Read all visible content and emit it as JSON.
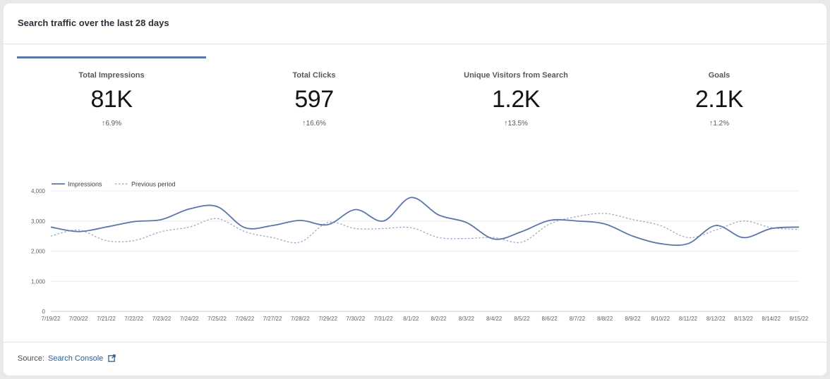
{
  "card": {
    "title": "Search traffic over the last 28 days"
  },
  "metrics": [
    {
      "label": "Total Impressions",
      "value": "81K",
      "delta": "6.9%"
    },
    {
      "label": "Total Clicks",
      "value": "597",
      "delta": "16.6%"
    },
    {
      "label": "Unique Visitors from Search",
      "value": "1.2K",
      "delta": "13.5%"
    },
    {
      "label": "Goals",
      "value": "2.1K",
      "delta": "1.2%"
    }
  ],
  "colors": {
    "accent": "#5a77a8",
    "previous": "#8fa3c6",
    "grid": "#ececef",
    "up": "#3d8a4a"
  },
  "footer": {
    "source_label": "Source:",
    "link_text": "Search Console",
    "link_icon": "external-link-icon"
  },
  "chart_data": {
    "type": "line",
    "categories": [
      "7/19/22",
      "7/20/22",
      "7/21/22",
      "7/22/22",
      "7/23/22",
      "7/24/22",
      "7/25/22",
      "7/26/22",
      "7/27/22",
      "7/28/22",
      "7/29/22",
      "7/30/22",
      "7/31/22",
      "8/1/22",
      "8/2/22",
      "8/3/22",
      "8/4/22",
      "8/5/22",
      "8/6/22",
      "8/7/22",
      "8/8/22",
      "8/9/22",
      "8/10/22",
      "8/11/22",
      "8/12/22",
      "8/13/22",
      "8/14/22",
      "8/15/22"
    ],
    "series": [
      {
        "name": "Impressions",
        "style": "solid",
        "values": [
          2800,
          2650,
          2800,
          2980,
          3050,
          3400,
          3480,
          2780,
          2850,
          3020,
          2880,
          3380,
          3000,
          3780,
          3200,
          2950,
          2400,
          2650,
          3020,
          3000,
          2900,
          2500,
          2250,
          2250,
          2850,
          2450,
          2750,
          2800
        ]
      },
      {
        "name": "Previous period",
        "style": "dashed",
        "values": [
          2500,
          2700,
          2350,
          2350,
          2650,
          2800,
          3080,
          2650,
          2450,
          2300,
          2950,
          2750,
          2750,
          2780,
          2450,
          2420,
          2450,
          2300,
          2900,
          3150,
          3250,
          3050,
          2850,
          2450,
          2700,
          3000,
          2780,
          2720
        ]
      }
    ],
    "y_ticks": [
      "0",
      "1,000",
      "2,000",
      "3,000",
      "4,000"
    ],
    "ylim": [
      0,
      4000
    ],
    "legend": "top-left",
    "grid": true
  }
}
